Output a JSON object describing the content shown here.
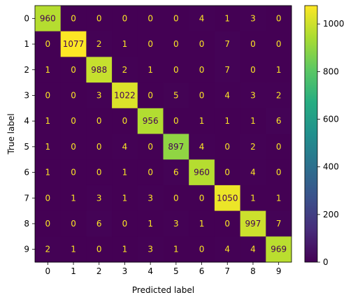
{
  "chart_data": {
    "type": "heatmap",
    "title": "",
    "xlabel": "Predicted label",
    "ylabel": "True label",
    "x_categories": [
      "0",
      "1",
      "2",
      "3",
      "4",
      "5",
      "6",
      "7",
      "8",
      "9"
    ],
    "y_categories": [
      "0",
      "1",
      "2",
      "3",
      "4",
      "5",
      "6",
      "7",
      "8",
      "9"
    ],
    "matrix": [
      [
        960,
        0,
        0,
        0,
        0,
        0,
        4,
        1,
        3,
        0
      ],
      [
        0,
        1077,
        2,
        1,
        0,
        0,
        0,
        7,
        0,
        0
      ],
      [
        1,
        0,
        988,
        2,
        1,
        0,
        0,
        7,
        0,
        1
      ],
      [
        0,
        0,
        3,
        1022,
        0,
        5,
        0,
        4,
        3,
        2
      ],
      [
        1,
        0,
        0,
        0,
        956,
        0,
        1,
        1,
        1,
        6
      ],
      [
        1,
        0,
        0,
        4,
        0,
        897,
        4,
        0,
        2,
        0
      ],
      [
        1,
        0,
        0,
        1,
        0,
        6,
        960,
        0,
        4,
        0
      ],
      [
        0,
        1,
        3,
        1,
        3,
        0,
        0,
        1050,
        1,
        1
      ],
      [
        0,
        0,
        6,
        0,
        1,
        3,
        1,
        0,
        997,
        7
      ],
      [
        2,
        1,
        0,
        1,
        3,
        1,
        0,
        4,
        4,
        969
      ]
    ],
    "colormap": "viridis",
    "colorbar": {
      "range": [
        0,
        1077
      ],
      "ticks": [
        0,
        200,
        400,
        600,
        800,
        1000
      ]
    },
    "text_colors": {
      "on_dark": "#fde725",
      "on_light": "#440154"
    },
    "grid": false
  }
}
